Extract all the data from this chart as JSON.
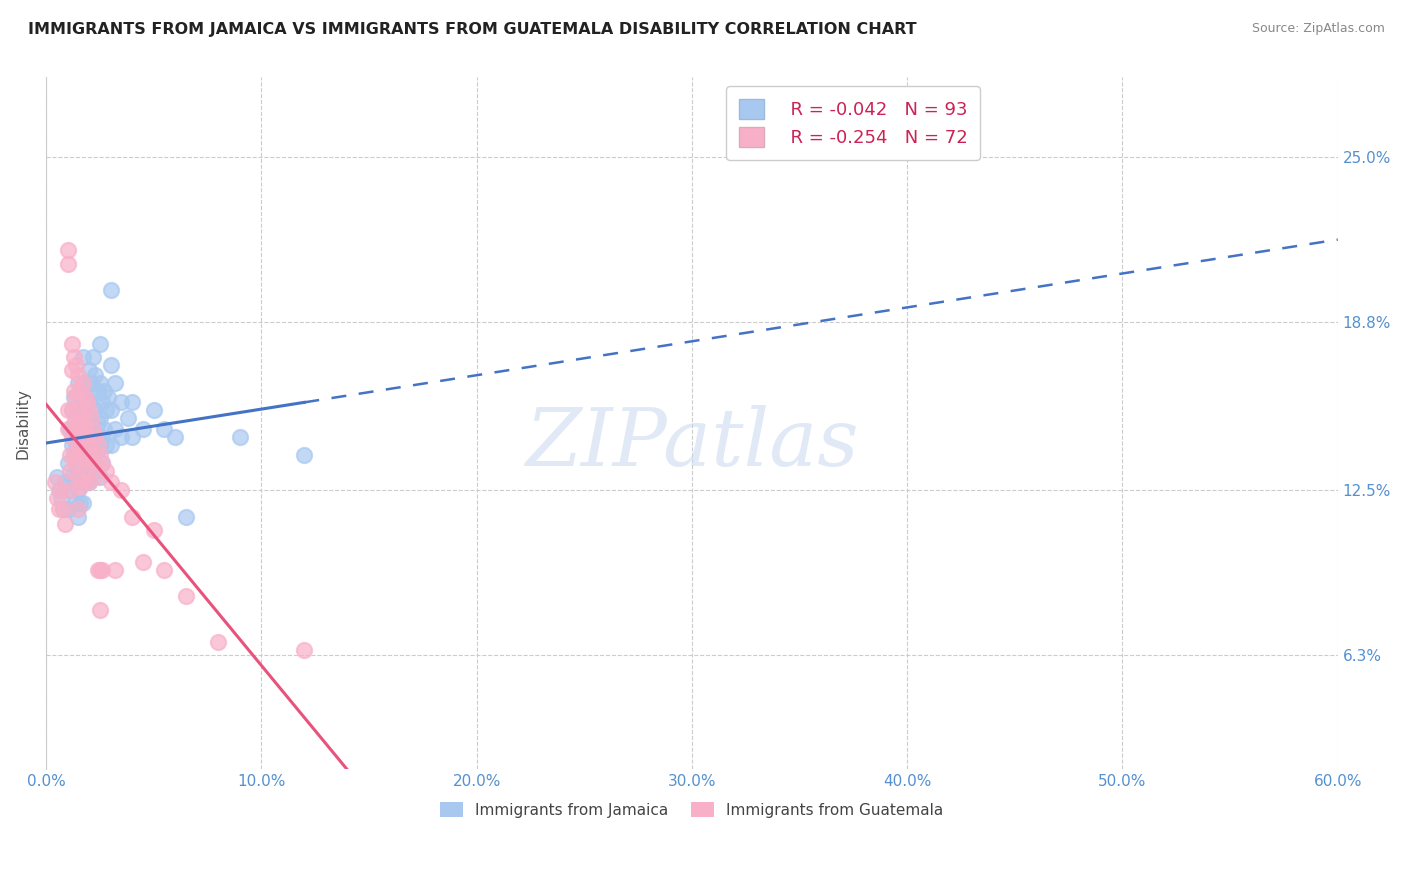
{
  "title": "IMMIGRANTS FROM JAMAICA VS IMMIGRANTS FROM GUATEMALA DISABILITY CORRELATION CHART",
  "source": "Source: ZipAtlas.com",
  "xlabel_ticks": [
    "0.0%",
    "10.0%",
    "20.0%",
    "30.0%",
    "40.0%",
    "50.0%",
    "60.0%"
  ],
  "xlabel_vals": [
    0.0,
    0.1,
    0.2,
    0.3,
    0.4,
    0.5,
    0.6
  ],
  "ylabel": "Disability",
  "ytick_labels": [
    "6.3%",
    "12.5%",
    "18.8%",
    "25.0%"
  ],
  "ytick_vals": [
    0.063,
    0.125,
    0.188,
    0.25
  ],
  "xlim": [
    0.0,
    0.6
  ],
  "ylim": [
    0.02,
    0.28
  ],
  "jamaica_color": "#a8c8f0",
  "guatemala_color": "#f8b0c8",
  "jamaica_line_color": "#4472c4",
  "guatemala_line_color": "#e8527c",
  "watermark": "ZIPatlas",
  "background_color": "#ffffff",
  "grid_color": "#cccccc",
  "title_color": "#222222",
  "axis_label_color": "#555555",
  "tick_label_color": "#5590d0",
  "title_fontsize": 11.5,
  "source_fontsize": 9,
  "jamaica_scatter": [
    [
      0.005,
      0.13
    ],
    [
      0.006,
      0.125
    ],
    [
      0.007,
      0.122
    ],
    [
      0.008,
      0.118
    ],
    [
      0.009,
      0.128
    ],
    [
      0.01,
      0.135
    ],
    [
      0.01,
      0.125
    ],
    [
      0.01,
      0.118
    ],
    [
      0.011,
      0.148
    ],
    [
      0.012,
      0.155
    ],
    [
      0.012,
      0.142
    ],
    [
      0.012,
      0.13
    ],
    [
      0.013,
      0.16
    ],
    [
      0.013,
      0.148
    ],
    [
      0.013,
      0.138
    ],
    [
      0.013,
      0.128
    ],
    [
      0.014,
      0.152
    ],
    [
      0.014,
      0.142
    ],
    [
      0.014,
      0.13
    ],
    [
      0.014,
      0.12
    ],
    [
      0.015,
      0.165
    ],
    [
      0.015,
      0.155
    ],
    [
      0.015,
      0.145
    ],
    [
      0.015,
      0.135
    ],
    [
      0.015,
      0.125
    ],
    [
      0.015,
      0.115
    ],
    [
      0.016,
      0.16
    ],
    [
      0.016,
      0.15
    ],
    [
      0.016,
      0.14
    ],
    [
      0.016,
      0.13
    ],
    [
      0.016,
      0.12
    ],
    [
      0.017,
      0.175
    ],
    [
      0.017,
      0.165
    ],
    [
      0.017,
      0.15
    ],
    [
      0.017,
      0.14
    ],
    [
      0.017,
      0.13
    ],
    [
      0.017,
      0.12
    ],
    [
      0.018,
      0.158
    ],
    [
      0.018,
      0.148
    ],
    [
      0.018,
      0.138
    ],
    [
      0.018,
      0.128
    ],
    [
      0.019,
      0.152
    ],
    [
      0.019,
      0.142
    ],
    [
      0.019,
      0.132
    ],
    [
      0.02,
      0.17
    ],
    [
      0.02,
      0.158
    ],
    [
      0.02,
      0.148
    ],
    [
      0.02,
      0.138
    ],
    [
      0.02,
      0.128
    ],
    [
      0.021,
      0.165
    ],
    [
      0.021,
      0.15
    ],
    [
      0.021,
      0.14
    ],
    [
      0.022,
      0.175
    ],
    [
      0.022,
      0.16
    ],
    [
      0.022,
      0.148
    ],
    [
      0.022,
      0.138
    ],
    [
      0.023,
      0.168
    ],
    [
      0.023,
      0.155
    ],
    [
      0.023,
      0.145
    ],
    [
      0.023,
      0.132
    ],
    [
      0.024,
      0.162
    ],
    [
      0.024,
      0.15
    ],
    [
      0.024,
      0.14
    ],
    [
      0.025,
      0.18
    ],
    [
      0.025,
      0.165
    ],
    [
      0.025,
      0.152
    ],
    [
      0.025,
      0.142
    ],
    [
      0.025,
      0.13
    ],
    [
      0.026,
      0.158
    ],
    [
      0.026,
      0.145
    ],
    [
      0.026,
      0.135
    ],
    [
      0.027,
      0.162
    ],
    [
      0.027,
      0.148
    ],
    [
      0.028,
      0.155
    ],
    [
      0.028,
      0.142
    ],
    [
      0.029,
      0.16
    ],
    [
      0.03,
      0.2
    ],
    [
      0.03,
      0.172
    ],
    [
      0.03,
      0.155
    ],
    [
      0.03,
      0.142
    ],
    [
      0.032,
      0.165
    ],
    [
      0.032,
      0.148
    ],
    [
      0.035,
      0.158
    ],
    [
      0.035,
      0.145
    ],
    [
      0.038,
      0.152
    ],
    [
      0.04,
      0.158
    ],
    [
      0.04,
      0.145
    ],
    [
      0.045,
      0.148
    ],
    [
      0.05,
      0.155
    ],
    [
      0.055,
      0.148
    ],
    [
      0.06,
      0.145
    ],
    [
      0.065,
      0.115
    ],
    [
      0.09,
      0.145
    ],
    [
      0.12,
      0.138
    ]
  ],
  "guatemala_scatter": [
    [
      0.004,
      0.128
    ],
    [
      0.005,
      0.122
    ],
    [
      0.006,
      0.118
    ],
    [
      0.007,
      0.125
    ],
    [
      0.008,
      0.118
    ],
    [
      0.009,
      0.112
    ],
    [
      0.01,
      0.215
    ],
    [
      0.01,
      0.21
    ],
    [
      0.01,
      0.155
    ],
    [
      0.01,
      0.148
    ],
    [
      0.011,
      0.138
    ],
    [
      0.011,
      0.132
    ],
    [
      0.011,
      0.125
    ],
    [
      0.012,
      0.18
    ],
    [
      0.012,
      0.17
    ],
    [
      0.012,
      0.155
    ],
    [
      0.012,
      0.145
    ],
    [
      0.013,
      0.175
    ],
    [
      0.013,
      0.162
    ],
    [
      0.013,
      0.15
    ],
    [
      0.013,
      0.138
    ],
    [
      0.014,
      0.172
    ],
    [
      0.014,
      0.16
    ],
    [
      0.014,
      0.148
    ],
    [
      0.014,
      0.135
    ],
    [
      0.015,
      0.168
    ],
    [
      0.015,
      0.155
    ],
    [
      0.015,
      0.142
    ],
    [
      0.015,
      0.13
    ],
    [
      0.015,
      0.118
    ],
    [
      0.016,
      0.162
    ],
    [
      0.016,
      0.15
    ],
    [
      0.016,
      0.138
    ],
    [
      0.016,
      0.126
    ],
    [
      0.017,
      0.165
    ],
    [
      0.017,
      0.152
    ],
    [
      0.017,
      0.14
    ],
    [
      0.017,
      0.128
    ],
    [
      0.018,
      0.16
    ],
    [
      0.018,
      0.148
    ],
    [
      0.018,
      0.136
    ],
    [
      0.019,
      0.158
    ],
    [
      0.019,
      0.145
    ],
    [
      0.019,
      0.132
    ],
    [
      0.02,
      0.155
    ],
    [
      0.02,
      0.142
    ],
    [
      0.02,
      0.128
    ],
    [
      0.021,
      0.152
    ],
    [
      0.021,
      0.138
    ],
    [
      0.022,
      0.148
    ],
    [
      0.022,
      0.135
    ],
    [
      0.023,
      0.145
    ],
    [
      0.023,
      0.13
    ],
    [
      0.024,
      0.142
    ],
    [
      0.024,
      0.095
    ],
    [
      0.025,
      0.138
    ],
    [
      0.025,
      0.095
    ],
    [
      0.025,
      0.08
    ],
    [
      0.026,
      0.135
    ],
    [
      0.026,
      0.095
    ],
    [
      0.028,
      0.132
    ],
    [
      0.03,
      0.128
    ],
    [
      0.032,
      0.095
    ],
    [
      0.035,
      0.125
    ],
    [
      0.04,
      0.115
    ],
    [
      0.045,
      0.098
    ],
    [
      0.05,
      0.11
    ],
    [
      0.055,
      0.095
    ],
    [
      0.065,
      0.085
    ],
    [
      0.08,
      0.068
    ],
    [
      0.12,
      0.065
    ]
  ]
}
